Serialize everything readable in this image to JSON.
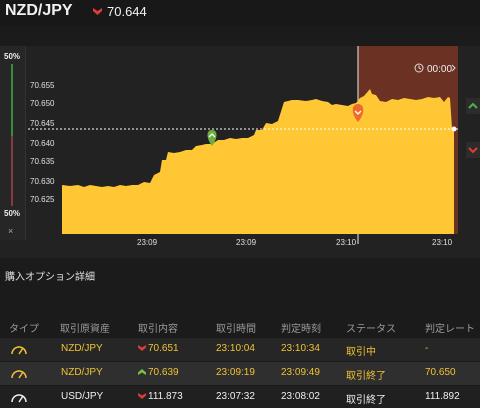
{
  "header": {
    "pair": "NZD/JPY",
    "rate": "70.644",
    "rate_direction": "down"
  },
  "sentiment": {
    "top_pct": "50%",
    "bottom_pct": "50%",
    "close": "×"
  },
  "chart_data": {
    "type": "area",
    "y_ticks": [
      "70.655",
      "70.650",
      "70.645",
      "70.640",
      "70.635",
      "70.630",
      "70.625"
    ],
    "x_ticks": [
      "23:09",
      "23:09",
      "23:10",
      "23:10"
    ],
    "current_rate": 70.644,
    "timer": "00:00",
    "fill_color": "#ffc734",
    "expiry_zone_color": "#6b3122",
    "markers": [
      {
        "type": "up",
        "rate": 70.639,
        "color": "#6fae3e"
      },
      {
        "type": "down",
        "rate": 70.651,
        "color": "#ef6a2a"
      }
    ],
    "ylim": [
      70.62,
      70.66
    ]
  },
  "section": {
    "title": "購入オプション詳細"
  },
  "table": {
    "headers": [
      "タイプ",
      "取引原資産",
      "取引内容",
      "取引時間",
      "判定時刻",
      "ステータス",
      "判定レート"
    ],
    "rows": [
      {
        "pair": "NZD/JPY",
        "direction": "down",
        "content": "70.651",
        "time": "23:10:04",
        "judge_time": "23:10:34",
        "status": "取引中",
        "judge_rate": "-"
      },
      {
        "pair": "NZD/JPY",
        "direction": "up",
        "content": "70.639",
        "time": "23:09:19",
        "judge_time": "23:09:49",
        "status": "取引終了",
        "judge_rate": "70.650"
      },
      {
        "pair": "USD/JPY",
        "direction": "down",
        "content": "111.873",
        "time": "23:07:32",
        "judge_time": "23:08:02",
        "status": "取引終了",
        "judge_rate": "111.892"
      }
    ]
  }
}
